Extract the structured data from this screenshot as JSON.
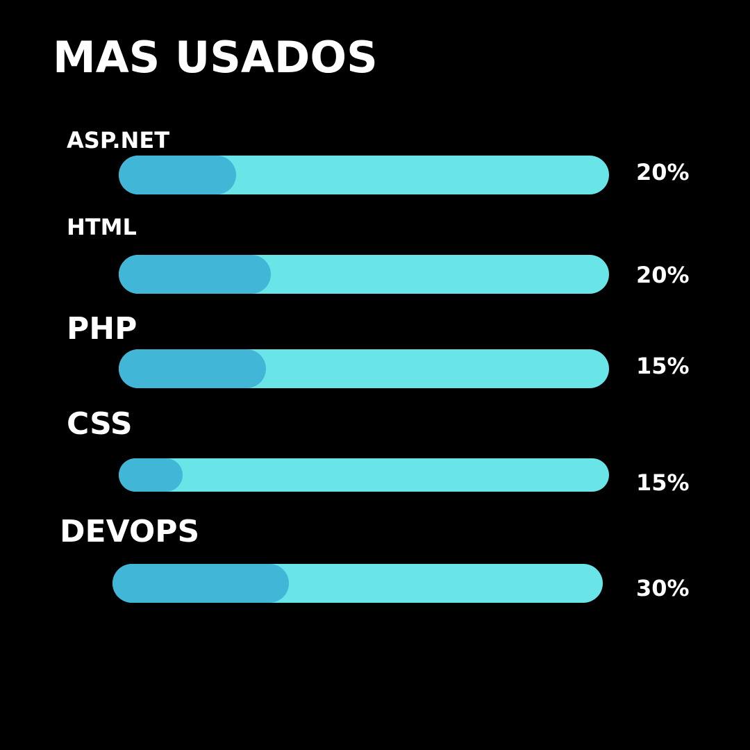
{
  "title": "MAS USADOS",
  "colors": {
    "background": "#000000",
    "track": "#69E5E8",
    "fill": "#42B6D6",
    "text": "#FFFFFF"
  },
  "chart_data": {
    "type": "bar",
    "orientation": "horizontal",
    "title": "MAS USADOS",
    "categories": [
      "ASP.NET",
      "HTML",
      "PHP",
      "CSS",
      "DEVOPS"
    ],
    "values": [
      20,
      20,
      15,
      15,
      30
    ],
    "value_labels": [
      "20%",
      "20%",
      "15%",
      "15%",
      "30%"
    ],
    "fill_fractions": [
      0.24,
      0.31,
      0.3,
      0.13,
      0.36
    ],
    "grid": false,
    "legend": "none"
  }
}
